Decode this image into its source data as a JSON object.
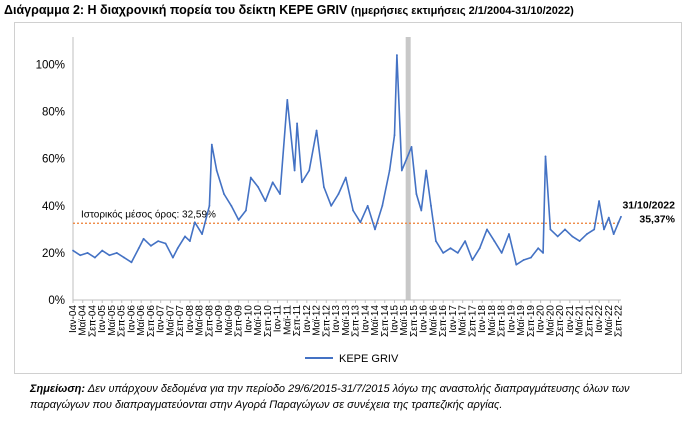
{
  "title": "Διάγραμμα 2: Η διαχρονική πορεία του δείκτη KEPE GRIV",
  "subtitle": "(ημερήσιες εκτιμήσεις 2/1/2004-31/10/2022)",
  "note": {
    "label": "Σημείωση:",
    "text": "Δεν υπάρχουν δεδομένα για την περίοδο 29/6/2015-31/7/2015 λόγω της αναστολής διαπραγμάτευσης όλων των παραγώγων που διαπραγματεύονται στην Αγορά Παραγώγων σε συνέχεια της τραπεζικής αργίας."
  },
  "colors": {
    "series": "#4472C4",
    "mean_line": "#ED7D31",
    "gap_band": "#C8C8C8",
    "axis": "#BFBFBF"
  },
  "chart_data": {
    "type": "line",
    "title": "",
    "xlabel": "",
    "ylabel": "",
    "ylim": [
      0,
      1.1
    ],
    "yticks": [
      0,
      0.2,
      0.4,
      0.6,
      0.8,
      1.0
    ],
    "ytick_labels": [
      "0%",
      "20%",
      "40%",
      "60%",
      "80%",
      "100%"
    ],
    "grid": false,
    "legend": "bottom",
    "x_start": "2004-01",
    "x_end": "2022-10",
    "xtick_labels": [
      "Ιαν-04",
      "Μαϊ-04",
      "Σεπ-04",
      "Ιαν-05",
      "Μαϊ-05",
      "Σεπ-05",
      "Ιαν-06",
      "Μαϊ-06",
      "Σεπ-06",
      "Ιαν-07",
      "Μαϊ-07",
      "Σεπ-07",
      "Ιαν-08",
      "Μαϊ-08",
      "Σεπ-08",
      "Ιαν-09",
      "Μαϊ-09",
      "Σεπ-09",
      "Ιαν-10",
      "Μαϊ-10",
      "Σεπ-10",
      "Ιαν-11",
      "Μαϊ-11",
      "Σεπ-11",
      "Ιαν-12",
      "Μαϊ-12",
      "Σεπ-12",
      "Ιαν-13",
      "Μαϊ-13",
      "Σεπ-13",
      "Ιαν-14",
      "Μαϊ-14",
      "Σεπ-14",
      "Ιαν-15",
      "Μαϊ-15",
      "Σεπ-15",
      "Ιαν-16",
      "Μαϊ-16",
      "Σεπ-16",
      "Ιαν-17",
      "Μαϊ-17",
      "Σεπ-17",
      "Ιαν-18",
      "Μαϊ-18",
      "Σεπ-18",
      "Ιαν-19",
      "Μαϊ-19",
      "Σεπ-19",
      "Ιαν-20",
      "Μαϊ-20",
      "Σεπ-20",
      "Ιαν-21",
      "Μαϊ-21",
      "Σεπ-21",
      "Ιαν-22",
      "Μαϊ-22",
      "Σεπ-22"
    ],
    "series": [
      {
        "name": "KEPE GRIV",
        "x": [
          "2004-01",
          "2004-04",
          "2004-07",
          "2004-10",
          "2005-01",
          "2005-04",
          "2005-07",
          "2005-10",
          "2006-01",
          "2006-04",
          "2006-06",
          "2006-09",
          "2006-12",
          "2007-03",
          "2007-06",
          "2007-08",
          "2007-11",
          "2008-01",
          "2008-03",
          "2008-06",
          "2008-09",
          "2008-10",
          "2008-12",
          "2009-03",
          "2009-06",
          "2009-09",
          "2009-12",
          "2010-02",
          "2010-05",
          "2010-08",
          "2010-11",
          "2011-02",
          "2011-05",
          "2011-08",
          "2011-09",
          "2011-11",
          "2012-02",
          "2012-05",
          "2012-08",
          "2012-11",
          "2013-02",
          "2013-05",
          "2013-08",
          "2013-11",
          "2014-02",
          "2014-05",
          "2014-08",
          "2014-11",
          "2015-01",
          "2015-02",
          "2015-04",
          "2015-06",
          "2015-08",
          "2015-10",
          "2015-12",
          "2016-02",
          "2016-04",
          "2016-06",
          "2016-09",
          "2016-12",
          "2017-03",
          "2017-06",
          "2017-09",
          "2017-12",
          "2018-03",
          "2018-06",
          "2018-09",
          "2018-12",
          "2019-03",
          "2019-06",
          "2019-09",
          "2019-12",
          "2020-02",
          "2020-03",
          "2020-05",
          "2020-08",
          "2020-11",
          "2021-02",
          "2021-05",
          "2021-08",
          "2021-11",
          "2022-01",
          "2022-03",
          "2022-05",
          "2022-07",
          "2022-09",
          "2022-10"
        ],
        "values": [
          0.21,
          0.19,
          0.2,
          0.18,
          0.21,
          0.19,
          0.2,
          0.18,
          0.16,
          0.22,
          0.26,
          0.23,
          0.25,
          0.24,
          0.18,
          0.22,
          0.27,
          0.25,
          0.33,
          0.28,
          0.4,
          0.66,
          0.55,
          0.45,
          0.4,
          0.34,
          0.38,
          0.52,
          0.48,
          0.42,
          0.5,
          0.45,
          0.85,
          0.55,
          0.75,
          0.5,
          0.55,
          0.72,
          0.48,
          0.4,
          0.45,
          0.52,
          0.38,
          0.33,
          0.4,
          0.3,
          0.4,
          0.55,
          0.7,
          1.04,
          0.55,
          0.6,
          0.65,
          0.45,
          0.38,
          0.55,
          0.4,
          0.25,
          0.2,
          0.22,
          0.2,
          0.25,
          0.17,
          0.22,
          0.3,
          0.25,
          0.2,
          0.28,
          0.15,
          0.17,
          0.18,
          0.22,
          0.2,
          0.61,
          0.3,
          0.27,
          0.3,
          0.27,
          0.25,
          0.28,
          0.3,
          0.42,
          0.3,
          0.35,
          0.28,
          0.33,
          0.3537
        ]
      }
    ],
    "mean_line": {
      "value": 0.3259,
      "label": "Ιστορικός μέσος όρος: 32,59%"
    },
    "gap": {
      "from": "2015-06",
      "to": "2015-07"
    },
    "end_annotation": {
      "date": "31/10/2022",
      "value_label": "35,37%",
      "value": 0.3537
    }
  }
}
